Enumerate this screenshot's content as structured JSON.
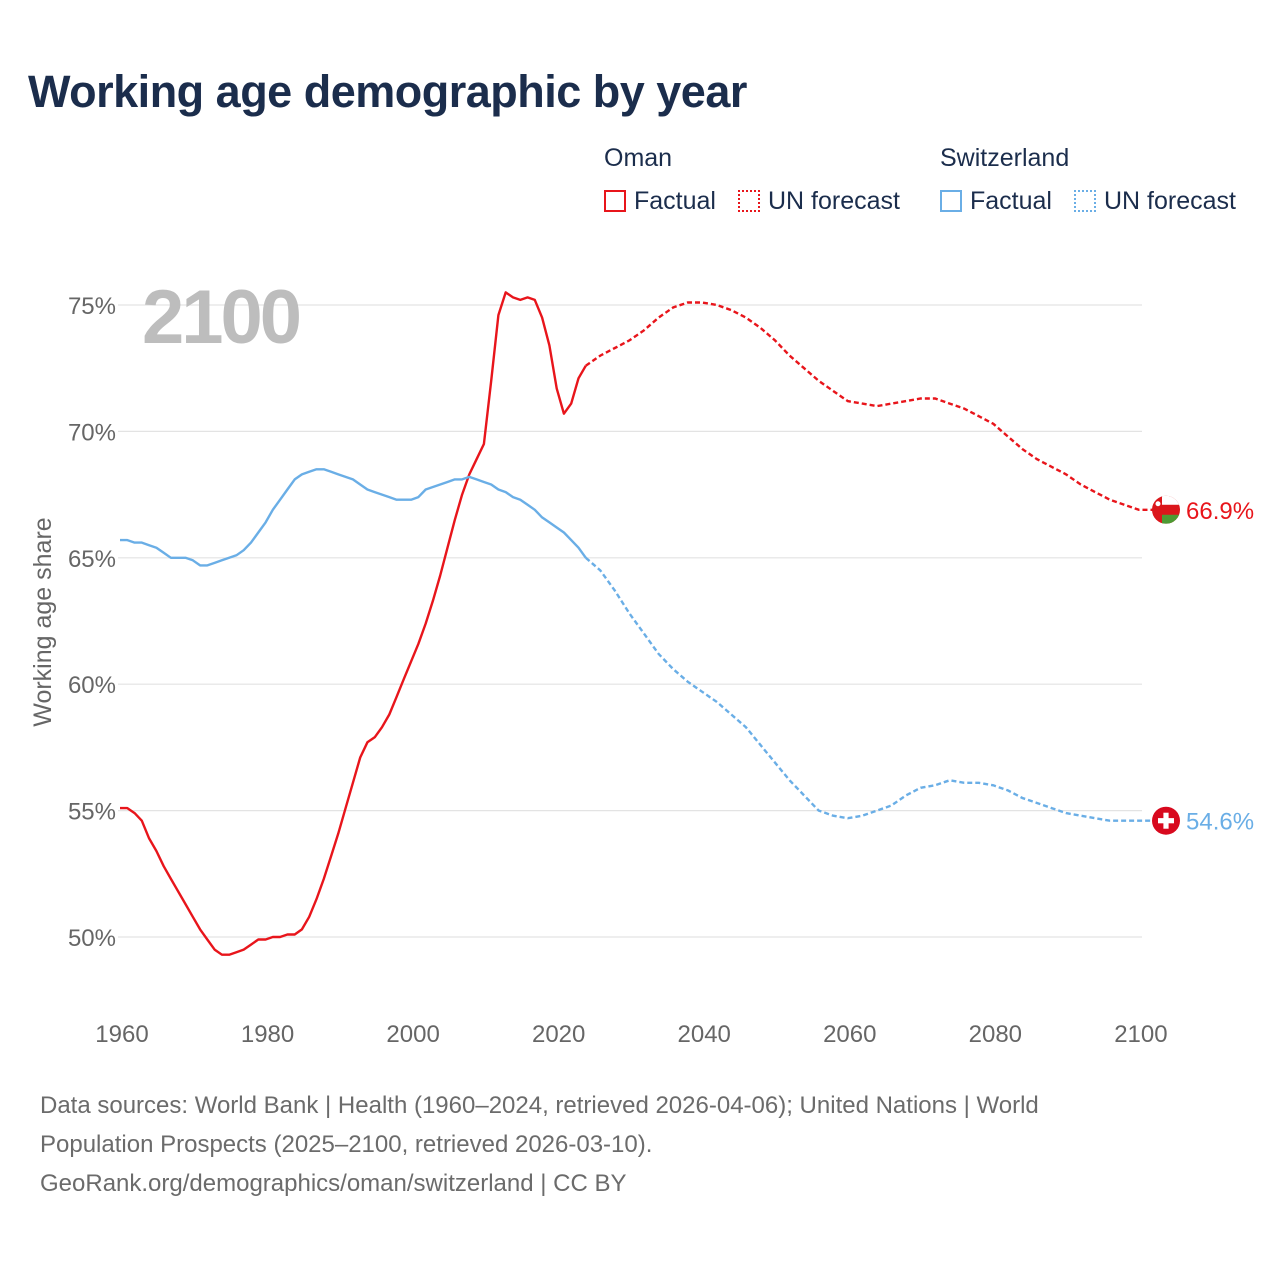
{
  "chart_data": {
    "type": "line",
    "title": "Working age demographic by year",
    "ylabel": "Working age share",
    "xlabel": "",
    "xlim": [
      1960,
      2104
    ],
    "ylim": [
      48,
      77
    ],
    "x_ticks": [
      1960,
      1980,
      2000,
      2020,
      2040,
      2060,
      2080,
      2100
    ],
    "x_tick_labels": [
      "1960",
      "1980",
      "2000",
      "2020",
      "2040",
      "2060",
      "2080",
      "2100"
    ],
    "y_ticks": [
      50,
      55,
      60,
      65,
      70,
      75
    ],
    "y_tick_labels": [
      "50%",
      "55%",
      "60%",
      "65%",
      "70%",
      "75%"
    ],
    "year_overlay": "2100",
    "legend_groups": [
      {
        "country": "Oman",
        "factual_label": "Factual",
        "forecast_label": "UN forecast",
        "color": "#e8151b"
      },
      {
        "country": "Switzerland",
        "factual_label": "Factual",
        "forecast_label": "UN forecast",
        "color": "#6aaee6"
      }
    ],
    "series": [
      {
        "name": "Oman",
        "color": "#e8151b",
        "end_label": "66.9%",
        "factual": {
          "x": [
            1960,
            1961,
            1962,
            1963,
            1964,
            1965,
            1966,
            1967,
            1968,
            1969,
            1970,
            1971,
            1972,
            1973,
            1974,
            1975,
            1976,
            1977,
            1978,
            1979,
            1980,
            1981,
            1982,
            1983,
            1984,
            1985,
            1986,
            1987,
            1988,
            1989,
            1990,
            1991,
            1992,
            1993,
            1994,
            1995,
            1996,
            1997,
            1998,
            1999,
            2000,
            2001,
            2002,
            2003,
            2004,
            2005,
            2006,
            2007,
            2008,
            2009,
            2010,
            2011,
            2012,
            2013,
            2014,
            2015,
            2016,
            2017,
            2018,
            2019,
            2020,
            2021,
            2022,
            2023,
            2024
          ],
          "y": [
            55.1,
            55.1,
            54.9,
            54.6,
            53.9,
            53.4,
            52.8,
            52.3,
            51.8,
            51.3,
            50.8,
            50.3,
            49.9,
            49.5,
            49.3,
            49.3,
            49.4,
            49.5,
            49.7,
            49.9,
            49.9,
            50.0,
            50.0,
            50.1,
            50.1,
            50.3,
            50.8,
            51.5,
            52.3,
            53.2,
            54.1,
            55.1,
            56.1,
            57.1,
            57.7,
            57.9,
            58.3,
            58.8,
            59.5,
            60.2,
            60.9,
            61.6,
            62.4,
            63.3,
            64.3,
            65.4,
            66.5,
            67.5,
            68.3,
            68.9,
            69.5,
            72.0,
            74.6,
            75.5,
            75.3,
            75.2,
            75.3,
            75.2,
            74.5,
            73.4,
            71.7,
            70.7,
            71.1,
            72.1,
            72.6
          ]
        },
        "forecast": {
          "x": [
            2024,
            2026,
            2028,
            2030,
            2032,
            2034,
            2036,
            2038,
            2040,
            2042,
            2044,
            2046,
            2048,
            2050,
            2052,
            2054,
            2056,
            2058,
            2060,
            2062,
            2064,
            2066,
            2068,
            2070,
            2072,
            2074,
            2076,
            2078,
            2080,
            2082,
            2084,
            2086,
            2088,
            2090,
            2092,
            2094,
            2096,
            2098,
            2100,
            2102,
            2104
          ],
          "y": [
            72.6,
            73.0,
            73.3,
            73.6,
            74.0,
            74.5,
            74.9,
            75.1,
            75.1,
            75.0,
            74.8,
            74.5,
            74.1,
            73.6,
            73.0,
            72.5,
            72.0,
            71.6,
            71.2,
            71.1,
            71.0,
            71.1,
            71.2,
            71.3,
            71.3,
            71.1,
            70.9,
            70.6,
            70.3,
            69.8,
            69.3,
            68.9,
            68.6,
            68.3,
            67.9,
            67.6,
            67.3,
            67.1,
            66.9,
            66.9,
            66.9
          ]
        }
      },
      {
        "name": "Switzerland",
        "color": "#6aaee6",
        "end_label": "54.6%",
        "factual": {
          "x": [
            1960,
            1961,
            1962,
            1963,
            1964,
            1965,
            1966,
            1967,
            1968,
            1969,
            1970,
            1971,
            1972,
            1973,
            1974,
            1975,
            1976,
            1977,
            1978,
            1979,
            1980,
            1981,
            1982,
            1983,
            1984,
            1985,
            1986,
            1987,
            1988,
            1989,
            1990,
            1991,
            1992,
            1993,
            1994,
            1995,
            1996,
            1997,
            1998,
            1999,
            2000,
            2001,
            2002,
            2003,
            2004,
            2005,
            2006,
            2007,
            2008,
            2009,
            2010,
            2011,
            2012,
            2013,
            2014,
            2015,
            2016,
            2017,
            2018,
            2019,
            2020,
            2021,
            2022,
            2023,
            2024
          ],
          "y": [
            65.7,
            65.7,
            65.6,
            65.6,
            65.5,
            65.4,
            65.2,
            65.0,
            65.0,
            65.0,
            64.9,
            64.7,
            64.7,
            64.8,
            64.9,
            65.0,
            65.1,
            65.3,
            65.6,
            66.0,
            66.4,
            66.9,
            67.3,
            67.7,
            68.1,
            68.3,
            68.4,
            68.5,
            68.5,
            68.4,
            68.3,
            68.2,
            68.1,
            67.9,
            67.7,
            67.6,
            67.5,
            67.4,
            67.3,
            67.3,
            67.3,
            67.4,
            67.7,
            67.8,
            67.9,
            68.0,
            68.1,
            68.1,
            68.2,
            68.1,
            68.0,
            67.9,
            67.7,
            67.6,
            67.4,
            67.3,
            67.1,
            66.9,
            66.6,
            66.4,
            66.2,
            66.0,
            65.7,
            65.4,
            65.0
          ]
        },
        "forecast": {
          "x": [
            2024,
            2026,
            2028,
            2030,
            2032,
            2034,
            2036,
            2038,
            2040,
            2042,
            2044,
            2046,
            2048,
            2050,
            2052,
            2054,
            2056,
            2058,
            2060,
            2062,
            2064,
            2066,
            2068,
            2070,
            2072,
            2074,
            2076,
            2078,
            2080,
            2082,
            2084,
            2086,
            2088,
            2090,
            2092,
            2094,
            2096,
            2098,
            2100,
            2102,
            2104
          ],
          "y": [
            65.0,
            64.5,
            63.7,
            62.8,
            62.0,
            61.2,
            60.6,
            60.1,
            59.7,
            59.3,
            58.8,
            58.3,
            57.6,
            56.9,
            56.2,
            55.6,
            55.0,
            54.8,
            54.7,
            54.8,
            55.0,
            55.2,
            55.6,
            55.9,
            56.0,
            56.2,
            56.1,
            56.1,
            56.0,
            55.8,
            55.5,
            55.3,
            55.1,
            54.9,
            54.8,
            54.7,
            54.6,
            54.6,
            54.6,
            54.6,
            54.6
          ]
        }
      }
    ]
  },
  "footer": {
    "line1": "Data sources: World Bank | Health (1960–2024, retrieved 2026-04-06); United Nations | World",
    "line2": "Population Prospects (2025–2100, retrieved 2026-03-10).",
    "line3": "GeoRank.org/demographics/oman/switzerland | CC BY"
  }
}
